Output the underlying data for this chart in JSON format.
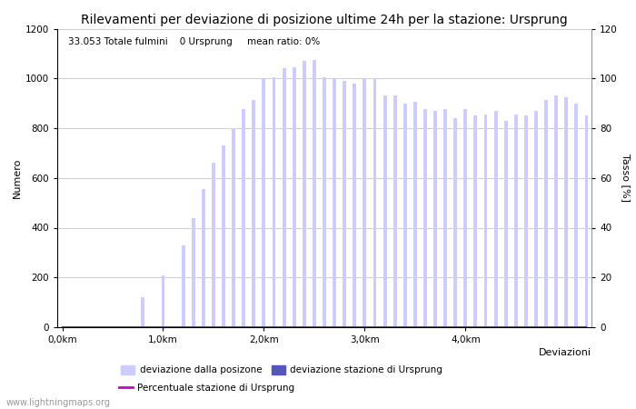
{
  "title": "Rilevamenti per deviazione di posizione ultime 24h per la stazione: Ursprung",
  "subtitle": "33.053 Totale fulmini    0 Ursprung     mean ratio: 0%",
  "xlabel": "Deviazioni",
  "ylabel_left": "Numero",
  "ylabel_right": "Tasso [%]",
  "watermark": "www.lightningmaps.org",
  "bar_color_light": "#ccccff",
  "bar_color_dark": "#5555bb",
  "line_color": "#cc00cc",
  "background_color": "#ffffff",
  "grid_color": "#bbbbbb",
  "ylim_left": [
    0,
    1200
  ],
  "ylim_right": [
    0,
    120
  ],
  "xtick_labels": [
    "0,0km",
    "1,0km",
    "2,0km",
    "3,0km",
    "4,0km"
  ],
  "bar_values": [
    2,
    2,
    2,
    2,
    2,
    2,
    2,
    2,
    120,
    2,
    210,
    2,
    330,
    440,
    555,
    660,
    730,
    800,
    875,
    915,
    1000,
    1005,
    1040,
    1045,
    1070,
    1075,
    1005,
    1000,
    990,
    980,
    1000,
    1000,
    930,
    930,
    900,
    905,
    875,
    870,
    875,
    840,
    875,
    850,
    855,
    870,
    830,
    855,
    850,
    870,
    915,
    930,
    925,
    900,
    850
  ],
  "station_values": [
    0,
    0,
    0,
    0,
    0,
    0,
    0,
    0,
    0,
    0,
    0,
    0,
    0,
    0,
    0,
    0,
    0,
    0,
    0,
    0,
    0,
    0,
    0,
    0,
    0,
    0,
    0,
    0,
    0,
    0,
    0,
    0,
    0,
    0,
    0,
    0,
    0,
    0,
    0,
    0,
    0,
    0,
    0,
    0,
    0,
    0,
    0,
    0,
    0,
    0,
    0,
    0,
    0
  ],
  "ratio_values": [
    0,
    0,
    0,
    0,
    0,
    0,
    0,
    0,
    0,
    0,
    0,
    0,
    0,
    0,
    0,
    0,
    0,
    0,
    0,
    0,
    0,
    0,
    0,
    0,
    0,
    0,
    0,
    0,
    0,
    0,
    0,
    0,
    0,
    0,
    0,
    0,
    0,
    0,
    0,
    0,
    0,
    0,
    0,
    0,
    0,
    0,
    0,
    0,
    0,
    0,
    0,
    0,
    0
  ],
  "legend_label_light": "deviazione dalla posizone",
  "legend_label_dark": "deviazione stazione di Ursprung",
  "legend_label_line": "Percentuale stazione di Ursprung",
  "title_fontsize": 10,
  "subtitle_fontsize": 7.5,
  "axis_fontsize": 8,
  "tick_fontsize": 7.5,
  "legend_fontsize": 7.5,
  "watermark_fontsize": 7
}
